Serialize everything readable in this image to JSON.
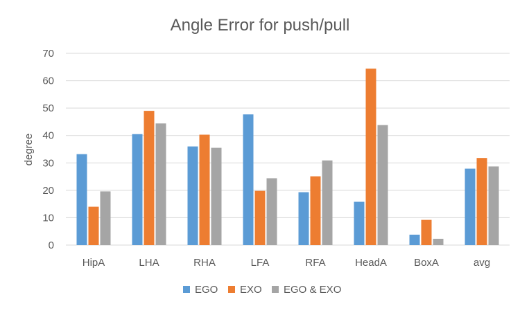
{
  "chart_data": {
    "type": "bar",
    "title": "Angle Error for push/pull",
    "xlabel": "",
    "ylabel": "degree",
    "ylim": [
      0,
      70
    ],
    "yticks": [
      "0",
      "10",
      "20",
      "30",
      "40",
      "50",
      "60",
      "70"
    ],
    "grid": true,
    "legend_position": "bottom",
    "categories": [
      "HipA",
      "LHA",
      "RHA",
      "LFA",
      "RFA",
      "HeadA",
      "BoxA",
      "avg"
    ],
    "series": [
      {
        "name": "EGO",
        "color": "#5b9bd5",
        "values": [
          33.2,
          40.5,
          36.0,
          47.7,
          19.3,
          15.8,
          3.8,
          27.9
        ]
      },
      {
        "name": "EXO",
        "color": "#ed7d31",
        "values": [
          14.0,
          49.0,
          40.3,
          19.8,
          25.1,
          64.4,
          9.2,
          31.8
        ]
      },
      {
        "name": "EGO & EXO",
        "color": "#a5a5a5",
        "values": [
          19.6,
          44.4,
          35.5,
          24.4,
          30.9,
          43.8,
          2.3,
          28.7
        ]
      }
    ]
  }
}
